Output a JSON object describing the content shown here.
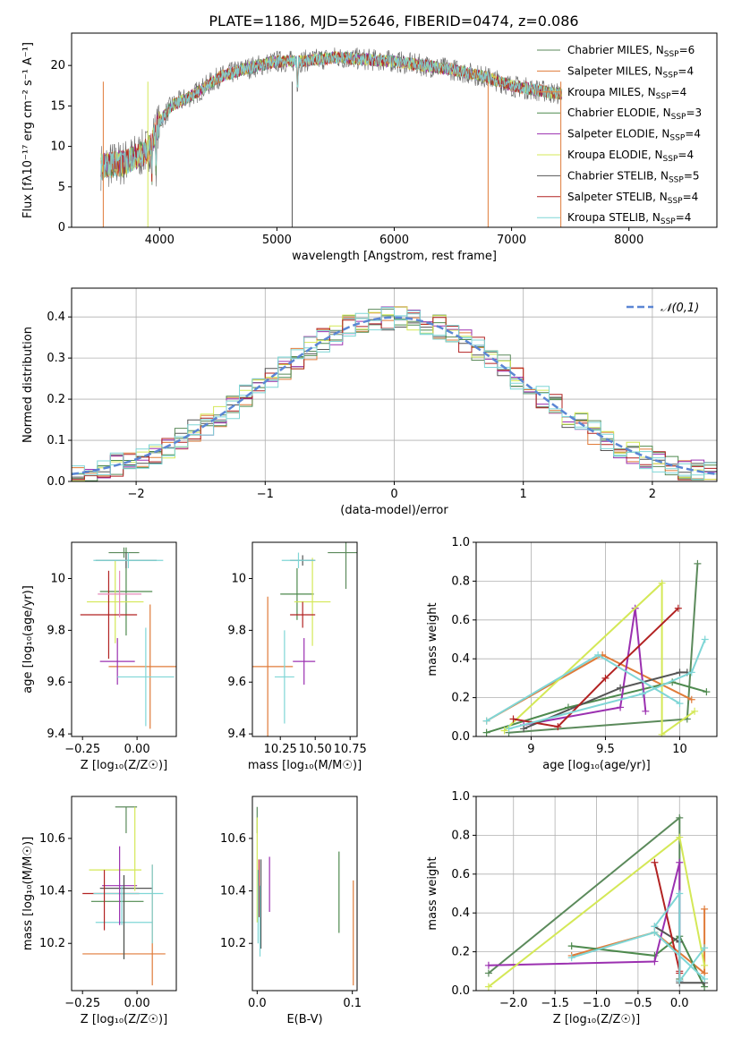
{
  "figure_title": "PLATE=1186, MJD=52646, FIBERID=0474, z=0.086",
  "series_styles": [
    {
      "name": "Chabrier MILES",
      "nssp": "6",
      "color": "#5b8a5b"
    },
    {
      "name": "Salpeter MILES",
      "nssp": "4",
      "color": "#e07b39"
    },
    {
      "name": "Kroupa MILES",
      "nssp": "4",
      "color": "#e8863a"
    },
    {
      "name": "Chabrier ELODIE",
      "nssp": "3",
      "color": "#4e8a4e"
    },
    {
      "name": "Salpeter ELODIE",
      "nssp": "4",
      "color": "#9b30b0"
    },
    {
      "name": "Kroupa ELODIE",
      "nssp": "4",
      "color": "#d4e857"
    },
    {
      "name": "Chabrier STELIB",
      "nssp": "5",
      "color": "#555555"
    },
    {
      "name": "Salpeter STELIB",
      "nssp": "4",
      "color": "#b22222"
    },
    {
      "name": "Kroupa STELIB",
      "nssp": "4",
      "color": "#7fd6d6"
    }
  ],
  "chart_data": [
    {
      "id": "spectrum",
      "type": "line",
      "xlabel": "wavelength [Angstrom, rest frame]",
      "ylabel": "Flux [fλ10⁻¹⁷ erg cm⁻² s⁻¹ A⁻¹]",
      "xlim": [
        3250,
        8750
      ],
      "ylim": [
        0,
        24
      ],
      "xticks": [
        4000,
        5000,
        6000,
        7000,
        8000
      ],
      "yticks": [
        0,
        5,
        10,
        15,
        20
      ],
      "legend": "right",
      "data_key_points": {
        "x": [
          3500,
          3700,
          3900,
          4000,
          4100,
          4300,
          4500,
          4700,
          5000,
          5200,
          5500,
          6000,
          6500,
          6800,
          7000,
          7400
        ],
        "y": [
          7.5,
          8.0,
          9.5,
          13.0,
          15.0,
          16.5,
          18.5,
          19.5,
          20.5,
          20.5,
          21.0,
          20.5,
          19.5,
          18.5,
          17.5,
          16.5
        ]
      }
    },
    {
      "id": "residual_hist",
      "type": "area",
      "xlabel": "(data-model)/error",
      "ylabel": "Normed distribution",
      "xlim": [
        -2.5,
        2.5
      ],
      "ylim": [
        0,
        0.47
      ],
      "xticks": [
        -2,
        -1,
        0,
        1,
        2
      ],
      "yticks": [
        0.0,
        0.1,
        0.2,
        0.3,
        0.4
      ],
      "legend_label": "𝒩(0,1)",
      "grid": true
    },
    {
      "id": "age_vs_Z",
      "type": "scatter",
      "xlabel": "Z [log₁₀(Z/Z☉)]",
      "ylabel": "age  [log₁₀(age/yr)]",
      "xlim": [
        -0.3,
        0.18
      ],
      "ylim": [
        9.39,
        10.14
      ],
      "xticks": [
        -0.25,
        0.0
      ],
      "xtick_labels": [
        "−0.25",
        "0.00"
      ],
      "yticks": [
        9.4,
        9.6,
        9.8,
        10.0
      ],
      "points": [
        {
          "x": -0.06,
          "y": 10.1,
          "xerr": 0.07,
          "yerr": 0.02,
          "c": 0
        },
        {
          "x": 0.06,
          "y": 9.66,
          "xerr": 0.19,
          "yerr": 0.24,
          "c": 1
        },
        {
          "x": -0.05,
          "y": 9.95,
          "xerr": 0.12,
          "yerr": 0.17,
          "c": 3
        },
        {
          "x": -0.09,
          "y": 9.68,
          "xerr": 0.08,
          "yerr": 0.09,
          "c": 4
        },
        {
          "x": -0.1,
          "y": 9.91,
          "xerr": 0.13,
          "yerr": 0.16,
          "c": 5
        },
        {
          "x": -0.05,
          "y": 10.07,
          "xerr": 0.14,
          "yerr": 0.03,
          "c": 6
        },
        {
          "x": -0.13,
          "y": 9.86,
          "xerr": 0.13,
          "yerr": 0.17,
          "c": 7
        },
        {
          "x": -0.04,
          "y": 10.07,
          "xerr": 0.16,
          "yerr": 0.03,
          "c": 8
        },
        {
          "x": -0.08,
          "y": 9.94,
          "xerr": 0.1,
          "yerr": 0.09,
          "c": 9
        },
        {
          "x": 0.04,
          "y": 9.62,
          "xerr": 0.13,
          "yerr": 0.19,
          "c": 10
        }
      ]
    },
    {
      "id": "age_vs_mass",
      "type": "scatter",
      "xlabel": "mass [log₁₀(M/M☉)]",
      "ylabel": "",
      "xlim": [
        10.05,
        10.8
      ],
      "ylim": [
        9.39,
        10.14
      ],
      "xticks": [
        10.25,
        10.5,
        10.75
      ],
      "xtick_labels": [
        "10.25",
        "10.50",
        "10.75"
      ],
      "yticks": [
        9.4,
        9.6,
        9.8,
        10.0
      ],
      "points": [
        {
          "x": 10.72,
          "y": 10.1,
          "xerr": 0.13,
          "yerr": 0.14,
          "c": 0
        },
        {
          "x": 10.16,
          "y": 9.66,
          "xerr": 0.18,
          "yerr": 0.27,
          "c": 1
        },
        {
          "x": 10.37,
          "y": 9.94,
          "xerr": 0.12,
          "yerr": 0.1,
          "c": 3
        },
        {
          "x": 10.42,
          "y": 9.68,
          "xerr": 0.08,
          "yerr": 0.09,
          "c": 4
        },
        {
          "x": 10.48,
          "y": 9.91,
          "xerr": 0.13,
          "yerr": 0.17,
          "c": 5
        },
        {
          "x": 10.41,
          "y": 10.07,
          "xerr": 0.09,
          "yerr": 0.02,
          "c": 6
        },
        {
          "x": 10.41,
          "y": 9.86,
          "xerr": 0.09,
          "yerr": 0.05,
          "c": 7
        },
        {
          "x": 10.38,
          "y": 10.07,
          "xerr": 0.12,
          "yerr": 0.03,
          "c": 8
        },
        {
          "x": 10.28,
          "y": 9.62,
          "xerr": 0.07,
          "yerr": 0.18,
          "c": 10
        }
      ]
    },
    {
      "id": "weight_vs_age",
      "type": "line",
      "xlabel": "age  [log₁₀(age/yr)]",
      "ylabel": "mass weight",
      "xlim": [
        8.63,
        10.25
      ],
      "ylim": [
        0,
        1.0
      ],
      "xticks": [
        9.0,
        9.5,
        10.0
      ],
      "yticks": [
        0.0,
        0.2,
        0.4,
        0.6,
        0.8,
        1.0
      ],
      "grid": true,
      "series": [
        {
          "c": 0,
          "x": [
            8.85,
            10.05,
            10.12
          ],
          "y": [
            0.02,
            0.09,
            0.89
          ]
        },
        {
          "c": 1,
          "x": [
            8.7,
            9.48,
            10.08
          ],
          "y": [
            0.08,
            0.42,
            0.19
          ]
        },
        {
          "c": 3,
          "x": [
            8.7,
            9.25,
            9.95,
            10.18
          ],
          "y": [
            0.02,
            0.15,
            0.28,
            0.23
          ]
        },
        {
          "c": 4,
          "x": [
            8.95,
            9.6,
            9.7,
            9.77
          ],
          "y": [
            0.06,
            0.15,
            0.66,
            0.13
          ]
        },
        {
          "c": 5,
          "x": [
            8.82,
            9.88,
            9.88,
            10.1
          ],
          "y": [
            0.03,
            0.79,
            0.01,
            0.13
          ]
        },
        {
          "c": 6,
          "x": [
            8.95,
            9.6,
            10.0,
            10.05
          ],
          "y": [
            0.04,
            0.25,
            0.33,
            0.33
          ]
        },
        {
          "c": 7,
          "x": [
            8.88,
            9.18,
            9.5,
            9.99
          ],
          "y": [
            0.09,
            0.05,
            0.3,
            0.66
          ]
        },
        {
          "c": 8,
          "x": [
            8.85,
            9.75,
            10.08,
            10.17
          ],
          "y": [
            0.04,
            0.22,
            0.33,
            0.5
          ]
        },
        {
          "c": 10,
          "x": [
            8.7,
            9.45,
            10.0
          ],
          "y": [
            0.08,
            0.42,
            0.17
          ]
        }
      ]
    },
    {
      "id": "mass_vs_Z",
      "type": "scatter",
      "xlabel": "Z [log₁₀(Z/Z☉)]",
      "ylabel": "mass [log₁₀(M/M☉)]",
      "xlim": [
        -0.3,
        0.18
      ],
      "ylim": [
        10.02,
        10.76
      ],
      "xticks": [
        -0.25,
        0.0
      ],
      "xtick_labels": [
        "−0.25",
        "0.00"
      ],
      "yticks": [
        10.2,
        10.4,
        10.6
      ],
      "points": [
        {
          "x": -0.05,
          "y": 10.72,
          "xerr": 0.05,
          "yerr": 0.0,
          "c": 0
        },
        {
          "x": -0.06,
          "y": 10.16,
          "xerr": 0.19,
          "yerr": 0.0,
          "c": 1
        },
        {
          "x": -0.09,
          "y": 10.36,
          "xerr": 0.12,
          "yerr": 0.0,
          "c": 3
        },
        {
          "x": -0.08,
          "y": 10.42,
          "xerr": 0.08,
          "yerr": 0.0,
          "c": 4
        },
        {
          "x": -0.1,
          "y": 10.48,
          "xerr": 0.12,
          "yerr": 0.0,
          "c": 5
        },
        {
          "x": -0.05,
          "y": 10.41,
          "xerr": 0.12,
          "yerr": 0.0,
          "c": 6
        },
        {
          "x": -0.12,
          "y": 10.39,
          "xerr": 0.13,
          "yerr": 0.0,
          "c": 7
        },
        {
          "x": -0.04,
          "y": 10.39,
          "xerr": 0.16,
          "yerr": 0.0,
          "c": 8
        },
        {
          "x": -0.06,
          "y": 10.28,
          "xerr": 0.13,
          "yerr": 0.0,
          "c": 10
        }
      ],
      "vlines": [
        {
          "x": -0.05,
          "y1": 10.62,
          "y2": 10.72,
          "c": 0
        },
        {
          "x": 0.07,
          "y1": 10.04,
          "y2": 10.5,
          "c": 1
        },
        {
          "x": -0.06,
          "y1": 10.14,
          "y2": 10.46,
          "c": 3
        },
        {
          "x": -0.08,
          "y1": 10.27,
          "y2": 10.57,
          "c": 4
        },
        {
          "x": -0.01,
          "y1": 10.4,
          "y2": 10.72,
          "c": 5
        },
        {
          "x": -0.06,
          "y1": 10.14,
          "y2": 10.46,
          "c": 6
        },
        {
          "x": -0.15,
          "y1": 10.25,
          "y2": 10.48,
          "c": 7
        },
        {
          "x": -0.07,
          "y1": 10.27,
          "y2": 10.42,
          "c": 8
        },
        {
          "x": 0.07,
          "y1": 10.2,
          "y2": 10.5,
          "c": 10
        }
      ]
    },
    {
      "id": "mass_vs_ebv",
      "type": "scatter",
      "xlabel": "E(B-V)",
      "ylabel": "",
      "xlim": [
        -0.005,
        0.105
      ],
      "ylim": [
        10.02,
        10.76
      ],
      "xticks": [
        0.0,
        0.1
      ],
      "xtick_labels": [
        "0.0",
        "0.1"
      ],
      "yticks": [
        10.2,
        10.4,
        10.6
      ],
      "vlines": [
        {
          "x": 0.0,
          "y1": 10.62,
          "y2": 10.72,
          "c": 0
        },
        {
          "x": 0.101,
          "y1": 10.04,
          "y2": 10.44,
          "c": 1
        },
        {
          "x": 0.086,
          "y1": 10.24,
          "y2": 10.55,
          "c": 3
        },
        {
          "x": 0.013,
          "y1": 10.32,
          "y2": 10.53,
          "c": 4
        },
        {
          "x": 0.0,
          "y1": 10.28,
          "y2": 10.68,
          "c": 5
        },
        {
          "x": 0.004,
          "y1": 10.18,
          "y2": 10.52,
          "c": 6
        },
        {
          "x": 0.002,
          "y1": 10.3,
          "y2": 10.52,
          "c": 7
        },
        {
          "x": 0.001,
          "y1": 10.2,
          "y2": 10.48,
          "c": 8
        },
        {
          "x": 0.003,
          "y1": 10.15,
          "y2": 10.42,
          "c": 10
        }
      ]
    },
    {
      "id": "weight_vs_Z",
      "type": "line",
      "xlabel": "Z [log₁₀(Z/Z☉)]",
      "ylabel": "mass weight",
      "xlim": [
        -2.45,
        0.45
      ],
      "ylim": [
        0,
        1.0
      ],
      "xticks": [
        -2.0,
        -1.5,
        -1.0,
        -0.5,
        0.0
      ],
      "xtick_labels": [
        "−2.0",
        "−1.5",
        "−1.0",
        "−0.5",
        "0.0"
      ],
      "yticks": [
        0.0,
        0.2,
        0.4,
        0.6,
        0.8,
        1.0
      ],
      "grid": true,
      "series": [
        {
          "c": 0,
          "x": [
            -2.3,
            0.0,
            0.0
          ],
          "y": [
            0.09,
            0.89,
            0.06
          ]
        },
        {
          "c": 1,
          "x": [
            -1.3,
            -0.3,
            0.3,
            0.3
          ],
          "y": [
            0.18,
            0.3,
            0.09,
            0.42
          ]
        },
        {
          "c": 3,
          "x": [
            -1.3,
            -0.3,
            0.0,
            0.3
          ],
          "y": [
            0.23,
            0.18,
            0.28,
            0.02
          ]
        },
        {
          "c": 4,
          "x": [
            -2.3,
            -0.3,
            0.0,
            0.0
          ],
          "y": [
            0.13,
            0.15,
            0.66,
            0.05
          ]
        },
        {
          "c": 5,
          "x": [
            -2.3,
            0.0,
            0.3
          ],
          "y": [
            0.02,
            0.79,
            0.13
          ]
        },
        {
          "c": 6,
          "x": [
            -0.3,
            0.0,
            0.0,
            0.3
          ],
          "y": [
            0.33,
            0.25,
            0.04,
            0.04
          ]
        },
        {
          "c": 7,
          "x": [
            -0.3,
            0.0,
            0.0,
            0.0
          ],
          "y": [
            0.66,
            0.1,
            0.05,
            0.09
          ]
        },
        {
          "c": 8,
          "x": [
            -0.3,
            0.0,
            0.0,
            0.3
          ],
          "y": [
            0.33,
            0.5,
            0.05,
            0.22
          ]
        },
        {
          "c": 10,
          "x": [
            -1.3,
            -0.3,
            0.3
          ],
          "y": [
            0.17,
            0.3,
            0.06
          ]
        }
      ]
    }
  ]
}
